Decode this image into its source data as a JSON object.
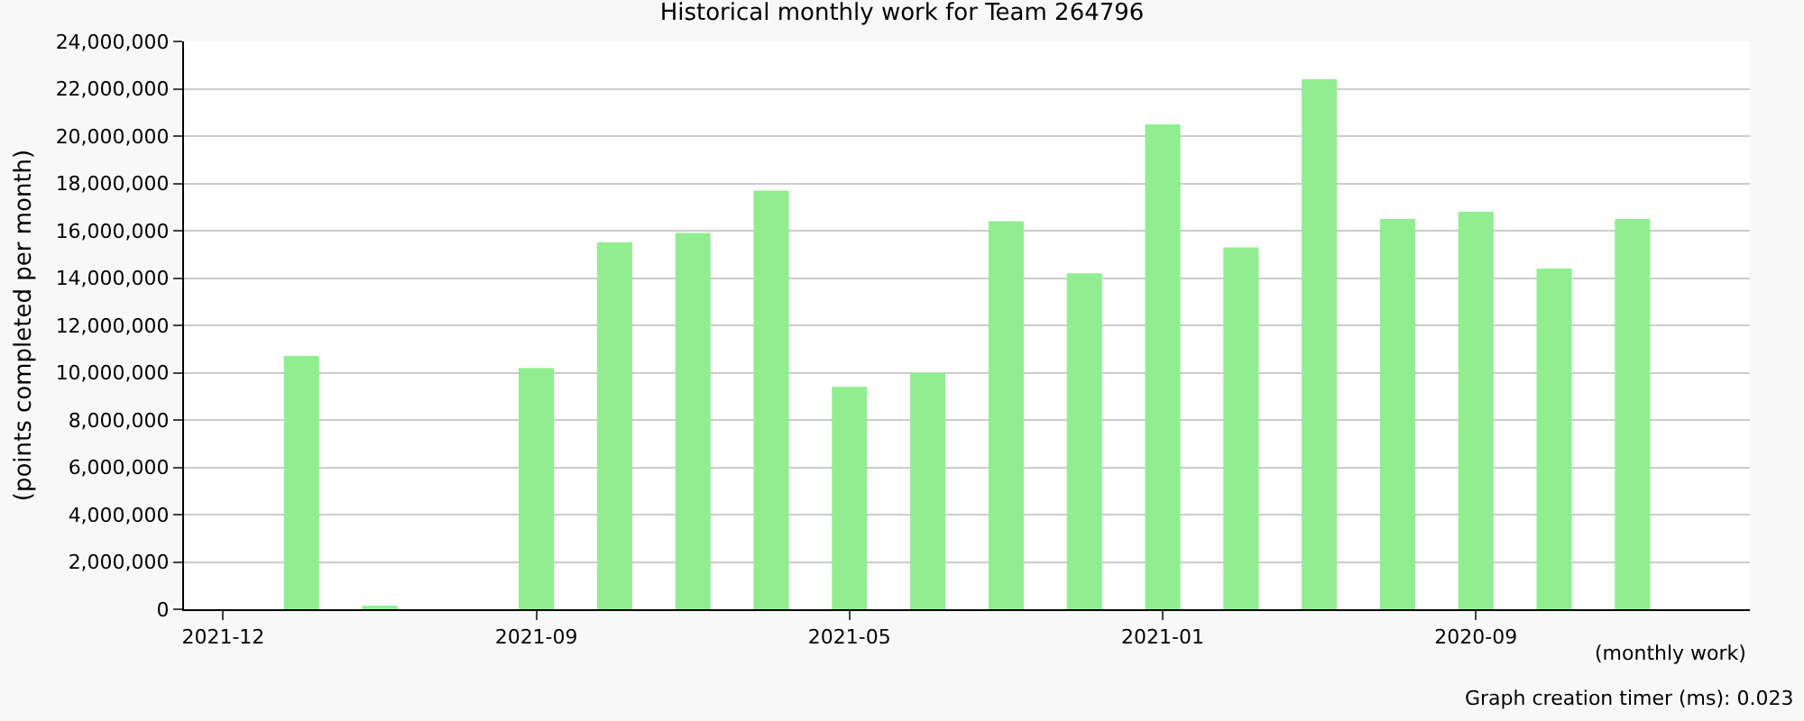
{
  "chart_data": {
    "type": "bar",
    "title": "Historical monthly work for Team 264796",
    "xlabel": "(monthly work)",
    "ylabel": "(points completed per month)",
    "categories": [
      "2021-12",
      null,
      null,
      null,
      "2021-09",
      null,
      null,
      null,
      "2021-05",
      null,
      null,
      null,
      "2021-01",
      null,
      null,
      null,
      "2020-09",
      null,
      null,
      null
    ],
    "values": [
      0,
      10700000,
      150000,
      0,
      10200000,
      15500000,
      15900000,
      17700000,
      9400000,
      10000000,
      16400000,
      14200000,
      20500000,
      15300000,
      22400000,
      16500000,
      16800000,
      14400000,
      16500000,
      0
    ],
    "color": "#90ee90",
    "ylim": [
      0,
      24000000
    ],
    "yticks": [
      {
        "value": 0,
        "label": "0"
      },
      {
        "value": 2000000,
        "label": "2,000,000"
      },
      {
        "value": 4000000,
        "label": "4,000,000"
      },
      {
        "value": 6000000,
        "label": "6,000,000"
      },
      {
        "value": 8000000,
        "label": "8,000,000"
      },
      {
        "value": 10000000,
        "label": "10,000,000"
      },
      {
        "value": 12000000,
        "label": "12,000,000"
      },
      {
        "value": 14000000,
        "label": "14,000,000"
      },
      {
        "value": 16000000,
        "label": "16,000,000"
      },
      {
        "value": 18000000,
        "label": "18,000,000"
      },
      {
        "value": 20000000,
        "label": "20,000,000"
      },
      {
        "value": 22000000,
        "label": "22,000,000"
      },
      {
        "value": 24000000,
        "label": "24,000,000"
      }
    ],
    "grid": "y",
    "legend": false,
    "annotations": [
      "Graph creation timer (ms): 0.023"
    ]
  }
}
